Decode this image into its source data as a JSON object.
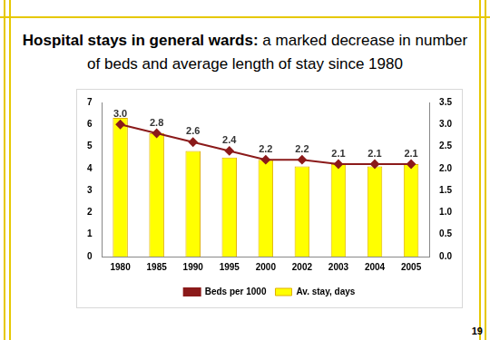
{
  "chart_data": {
    "type": "bar",
    "title": "Hospital stays in general wards:",
    "subtitle": "a marked decrease in number of beds and average length of stay since 1980",
    "categories": [
      "1980",
      "1985",
      "1990",
      "1995",
      "2000",
      "2002",
      "2003",
      "2004",
      "2005"
    ],
    "series": [
      {
        "name": "Av. stay, days",
        "type": "bar",
        "color": "#ffff00",
        "values": [
          6.3,
          5.6,
          4.8,
          4.5,
          4.4,
          4.1,
          4.2,
          4.1,
          4.2
        ]
      },
      {
        "name": "Beds per 1000",
        "type": "line",
        "axis": "y2",
        "color": "#8b1a1a",
        "marker": "diamond",
        "line_style": "solid",
        "data_labels": true,
        "values": [
          3.0,
          2.8,
          2.6,
          2.4,
          2.2,
          2.2,
          2.1,
          2.1,
          2.1
        ],
        "value_labels": [
          "3.0",
          "2.8",
          "2.6",
          "2.4",
          "2.2",
          "2.2",
          "2.1",
          "2.1",
          "2.1"
        ]
      }
    ],
    "ylim": [
      0,
      7
    ],
    "yticks": [
      0,
      1,
      2,
      3,
      4,
      5,
      6,
      7
    ],
    "y2lim": [
      0,
      3.5
    ],
    "y2ticks": [
      {
        "value": 0,
        "label": "0.0"
      },
      {
        "value": 0.5,
        "label": "0.5"
      },
      {
        "value": 1,
        "label": "1.0"
      },
      {
        "value": 1.5,
        "label": "1.5"
      },
      {
        "value": 2,
        "label": "2.0"
      },
      {
        "value": 2.5,
        "label": "2.5"
      },
      {
        "value": 3,
        "label": "3.0"
      },
      {
        "value": 3.5,
        "label": "3.5"
      }
    ],
    "grid": false,
    "legend": "bottom",
    "annotations": [
      "19"
    ]
  }
}
